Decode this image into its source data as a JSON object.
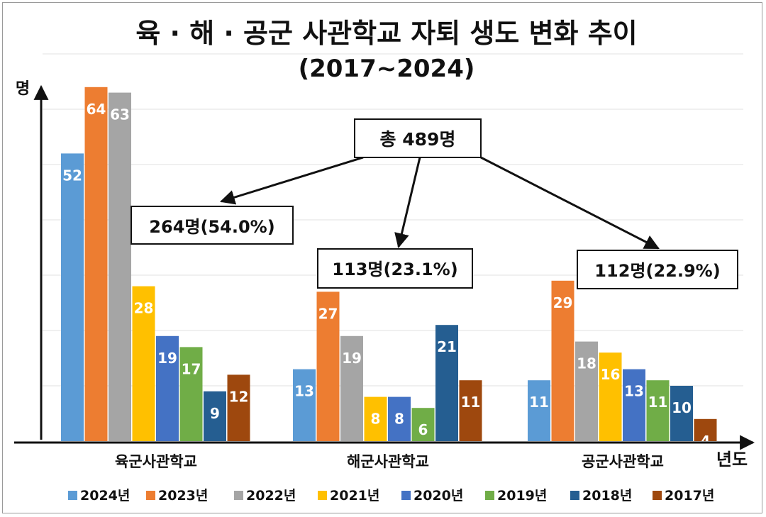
{
  "chart_data": {
    "type": "bar",
    "title": "육 · 해 · 공군 사관학교 자퇴 생도 변화 추이",
    "subtitle": "(2017~2024)",
    "ylabel": "명",
    "xlabel": "년도",
    "ylim": [
      0,
      64
    ],
    "grid": true,
    "categories": [
      "육군사관학교",
      "해군사관학교",
      "공군사관학교"
    ],
    "series": [
      {
        "name": "2024년",
        "color": "#5b9bd5",
        "values": [
          52,
          13,
          11
        ]
      },
      {
        "name": "2023년",
        "color": "#ed7d31",
        "values": [
          64,
          27,
          29
        ]
      },
      {
        "name": "2022년",
        "color": "#a5a5a5",
        "values": [
          63,
          19,
          18
        ]
      },
      {
        "name": "2021년",
        "color": "#ffc000",
        "values": [
          28,
          8,
          16
        ]
      },
      {
        "name": "2020년",
        "color": "#4472c4",
        "values": [
          19,
          8,
          13
        ]
      },
      {
        "name": "2019년",
        "color": "#70ad47",
        "values": [
          17,
          6,
          11
        ]
      },
      {
        "name": "2018년",
        "color": "#255e91",
        "values": [
          9,
          21,
          10
        ]
      },
      {
        "name": "2017년",
        "color": "#9e480e",
        "values": [
          12,
          11,
          4
        ]
      }
    ],
    "legend_position": "bottom",
    "annotations": {
      "total": "총 489명",
      "groups": [
        "264명(54.0%)",
        "113명(23.1%)",
        "112명(22.9%)"
      ]
    }
  }
}
